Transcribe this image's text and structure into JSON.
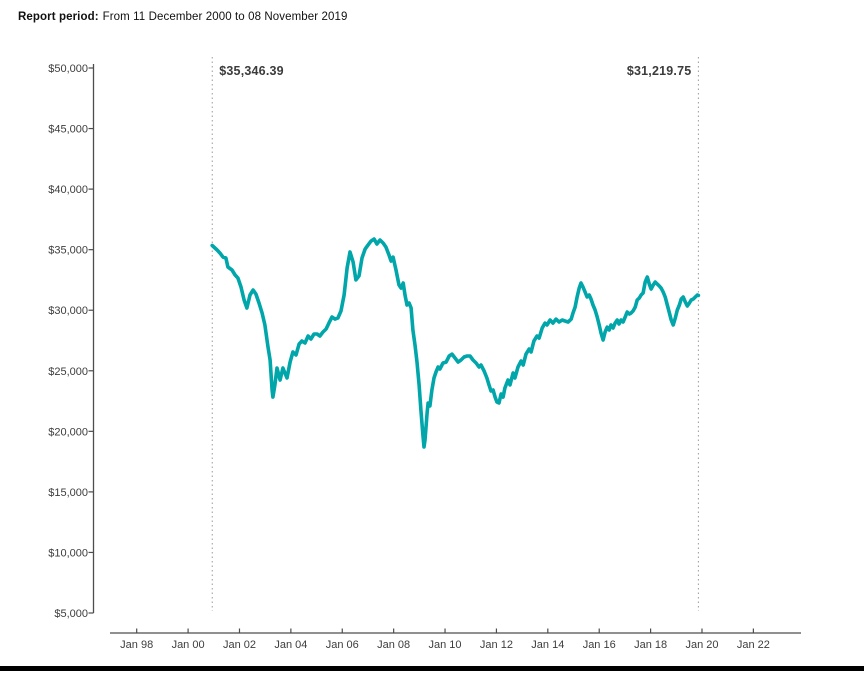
{
  "header": {
    "label": "Report period:",
    "value": "From 11 December 2000 to 08 November 2019"
  },
  "chart_data": {
    "type": "line",
    "title": "",
    "grid": "off",
    "legend": "none",
    "x_axis": {
      "tick_values": [
        1998,
        2000,
        2002,
        2004,
        2006,
        2008,
        2010,
        2012,
        2014,
        2016,
        2018,
        2020,
        2022
      ],
      "tick_labels": [
        "Jan 98",
        "Jan 00",
        "Jan 02",
        "Jan 04",
        "Jan 06",
        "Jan 08",
        "Jan 10",
        "Jan 12",
        "Jan 14",
        "Jan 16",
        "Jan 18",
        "Jan 20",
        "Jan 22"
      ],
      "range": [
        1996.95,
        2023.85
      ]
    },
    "y_axis": {
      "tick_values": [
        5000,
        10000,
        15000,
        20000,
        25000,
        30000,
        35000,
        40000,
        45000,
        50000
      ],
      "tick_labels": [
        "$5,000",
        "$10,000",
        "$15,000",
        "$20,000",
        "$25,000",
        "$30,000",
        "$35,000",
        "$40,000",
        "$45,000",
        "$50,000"
      ],
      "range": [
        5000,
        50000
      ]
    },
    "annotations": [
      {
        "label": "$35,346.39",
        "value": 35346.39,
        "year": 2000.94,
        "text_side": "right"
      },
      {
        "label": "$31,219.75",
        "value": 31219.75,
        "year": 2019.86,
        "text_side": "left"
      }
    ],
    "series": [
      {
        "name": "portfolio-value",
        "color": "#00A6A9",
        "points": [
          [
            2000.94,
            35346.39
          ],
          [
            2001.13,
            34970
          ],
          [
            2001.24,
            34720
          ],
          [
            2001.36,
            34390
          ],
          [
            2001.47,
            34310
          ],
          [
            2001.55,
            33570
          ],
          [
            2001.71,
            33320
          ],
          [
            2001.83,
            32910
          ],
          [
            2001.94,
            32660
          ],
          [
            2002.06,
            31920
          ],
          [
            2002.18,
            30840
          ],
          [
            2002.29,
            30180
          ],
          [
            2002.41,
            31260
          ],
          [
            2002.53,
            31670
          ],
          [
            2002.64,
            31340
          ],
          [
            2002.76,
            30600
          ],
          [
            2002.88,
            29770
          ],
          [
            2002.99,
            28780
          ],
          [
            2003.11,
            26960
          ],
          [
            2003.19,
            25890
          ],
          [
            2003.27,
            23410
          ],
          [
            2003.3,
            22830
          ],
          [
            2003.38,
            23830
          ],
          [
            2003.46,
            25230
          ],
          [
            2003.58,
            24240
          ],
          [
            2003.69,
            25230
          ],
          [
            2003.85,
            24400
          ],
          [
            2003.97,
            25720
          ],
          [
            2004.08,
            26550
          ],
          [
            2004.2,
            26300
          ],
          [
            2004.32,
            27210
          ],
          [
            2004.43,
            27460
          ],
          [
            2004.55,
            27290
          ],
          [
            2004.67,
            27870
          ],
          [
            2004.78,
            27620
          ],
          [
            2004.9,
            28040
          ],
          [
            2005.02,
            28040
          ],
          [
            2005.13,
            27870
          ],
          [
            2005.25,
            28200
          ],
          [
            2005.37,
            28450
          ],
          [
            2005.48,
            28940
          ],
          [
            2005.6,
            29440
          ],
          [
            2005.72,
            29270
          ],
          [
            2005.83,
            29360
          ],
          [
            2005.95,
            29940
          ],
          [
            2006.07,
            31260
          ],
          [
            2006.19,
            33490
          ],
          [
            2006.3,
            34810
          ],
          [
            2006.42,
            33980
          ],
          [
            2006.53,
            32500
          ],
          [
            2006.65,
            32830
          ],
          [
            2006.77,
            34310
          ],
          [
            2006.89,
            35050
          ],
          [
            2007.0,
            35380
          ],
          [
            2007.12,
            35710
          ],
          [
            2007.24,
            35880
          ],
          [
            2007.35,
            35470
          ],
          [
            2007.47,
            35800
          ],
          [
            2007.59,
            35550
          ],
          [
            2007.7,
            35220
          ],
          [
            2007.82,
            34560
          ],
          [
            2007.9,
            34060
          ],
          [
            2007.98,
            34390
          ],
          [
            2008.09,
            33320
          ],
          [
            2008.21,
            32080
          ],
          [
            2008.29,
            31830
          ],
          [
            2008.37,
            32250
          ],
          [
            2008.44,
            31260
          ],
          [
            2008.52,
            30430
          ],
          [
            2008.6,
            30600
          ],
          [
            2008.68,
            30180
          ],
          [
            2008.75,
            28370
          ],
          [
            2008.83,
            27130
          ],
          [
            2008.91,
            25720
          ],
          [
            2008.99,
            23830
          ],
          [
            2009.06,
            21760
          ],
          [
            2009.14,
            19700
          ],
          [
            2009.18,
            18710
          ],
          [
            2009.22,
            19280
          ],
          [
            2009.3,
            21510
          ],
          [
            2009.34,
            22340
          ],
          [
            2009.41,
            22090
          ],
          [
            2009.49,
            23410
          ],
          [
            2009.57,
            24400
          ],
          [
            2009.65,
            24900
          ],
          [
            2009.73,
            25310
          ],
          [
            2009.8,
            25150
          ],
          [
            2009.92,
            25640
          ],
          [
            2010.04,
            25720
          ],
          [
            2010.16,
            26220
          ],
          [
            2010.27,
            26380
          ],
          [
            2010.39,
            26050
          ],
          [
            2010.51,
            25720
          ],
          [
            2010.62,
            25890
          ],
          [
            2010.74,
            26140
          ],
          [
            2010.86,
            26220
          ],
          [
            2010.97,
            26220
          ],
          [
            2011.09,
            25890
          ],
          [
            2011.21,
            25640
          ],
          [
            2011.32,
            25310
          ],
          [
            2011.4,
            25480
          ],
          [
            2011.52,
            24980
          ],
          [
            2011.63,
            24400
          ],
          [
            2011.71,
            23830
          ],
          [
            2011.79,
            23330
          ],
          [
            2011.87,
            23410
          ],
          [
            2011.95,
            22830
          ],
          [
            2012.02,
            22420
          ],
          [
            2012.1,
            22340
          ],
          [
            2012.18,
            23080
          ],
          [
            2012.26,
            22830
          ],
          [
            2012.33,
            23580
          ],
          [
            2012.45,
            24240
          ],
          [
            2012.53,
            23830
          ],
          [
            2012.65,
            24820
          ],
          [
            2012.72,
            24400
          ],
          [
            2012.84,
            25310
          ],
          [
            2012.96,
            25810
          ],
          [
            2013.04,
            25480
          ],
          [
            2013.15,
            26380
          ],
          [
            2013.27,
            26800
          ],
          [
            2013.35,
            26550
          ],
          [
            2013.46,
            27460
          ],
          [
            2013.58,
            27870
          ],
          [
            2013.66,
            27700
          ],
          [
            2013.78,
            28530
          ],
          [
            2013.89,
            28940
          ],
          [
            2013.97,
            28780
          ],
          [
            2014.09,
            29190
          ],
          [
            2014.2,
            28940
          ],
          [
            2014.32,
            29270
          ],
          [
            2014.44,
            29030
          ],
          [
            2014.56,
            29190
          ],
          [
            2014.67,
            29110
          ],
          [
            2014.79,
            29030
          ],
          [
            2014.91,
            29270
          ],
          [
            2014.98,
            29770
          ],
          [
            2015.06,
            30260
          ],
          [
            2015.14,
            31090
          ],
          [
            2015.22,
            31830
          ],
          [
            2015.29,
            32250
          ],
          [
            2015.37,
            31920
          ],
          [
            2015.45,
            31500
          ],
          [
            2015.53,
            31090
          ],
          [
            2015.61,
            31260
          ],
          [
            2015.68,
            30930
          ],
          [
            2015.76,
            30430
          ],
          [
            2015.84,
            30020
          ],
          [
            2015.92,
            29440
          ],
          [
            2016.0,
            28780
          ],
          [
            2016.07,
            28120
          ],
          [
            2016.15,
            27540
          ],
          [
            2016.23,
            28200
          ],
          [
            2016.31,
            28610
          ],
          [
            2016.39,
            28370
          ],
          [
            2016.46,
            28780
          ],
          [
            2016.54,
            28530
          ],
          [
            2016.62,
            28940
          ],
          [
            2016.7,
            29190
          ],
          [
            2016.77,
            28860
          ],
          [
            2016.85,
            29190
          ],
          [
            2016.93,
            29030
          ],
          [
            2017.01,
            29440
          ],
          [
            2017.09,
            29850
          ],
          [
            2017.17,
            29690
          ],
          [
            2017.24,
            29770
          ],
          [
            2017.32,
            29940
          ],
          [
            2017.4,
            30260
          ],
          [
            2017.48,
            30840
          ],
          [
            2017.56,
            31010
          ],
          [
            2017.63,
            31260
          ],
          [
            2017.71,
            31420
          ],
          [
            2017.79,
            32330
          ],
          [
            2017.87,
            32740
          ],
          [
            2017.95,
            32160
          ],
          [
            2018.02,
            31750
          ],
          [
            2018.1,
            32080
          ],
          [
            2018.18,
            32330
          ],
          [
            2018.26,
            32160
          ],
          [
            2018.34,
            32000
          ],
          [
            2018.41,
            31830
          ],
          [
            2018.49,
            31500
          ],
          [
            2018.57,
            31090
          ],
          [
            2018.65,
            30430
          ],
          [
            2018.73,
            29770
          ],
          [
            2018.8,
            29190
          ],
          [
            2018.88,
            28780
          ],
          [
            2018.96,
            29360
          ],
          [
            2019.04,
            30020
          ],
          [
            2019.12,
            30430
          ],
          [
            2019.19,
            30930
          ],
          [
            2019.27,
            31090
          ],
          [
            2019.35,
            30680
          ],
          [
            2019.43,
            30350
          ],
          [
            2019.51,
            30600
          ],
          [
            2019.58,
            30840
          ],
          [
            2019.66,
            30930
          ],
          [
            2019.74,
            31090
          ],
          [
            2019.82,
            31260
          ],
          [
            2019.86,
            31219.75
          ]
        ]
      }
    ]
  }
}
